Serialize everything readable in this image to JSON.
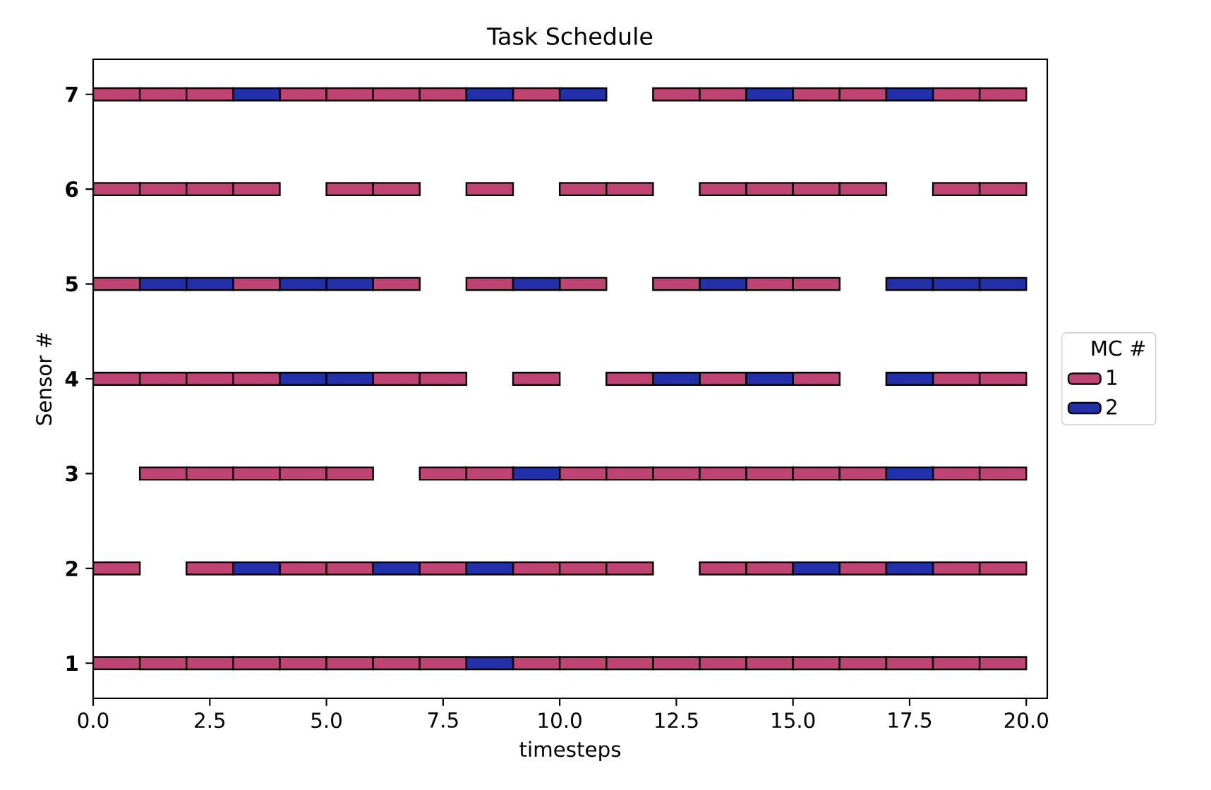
{
  "chart_data": {
    "type": "bar",
    "orientation": "horizontal",
    "title": "Task Schedule",
    "xlabel": "timesteps",
    "ylabel": "Sensor #",
    "legend_title": "MC #",
    "legend": "right",
    "categories": [
      "7",
      "6",
      "5",
      "4",
      "3",
      "2",
      "1"
    ],
    "xlim": [
      0,
      20.45
    ],
    "xticks": [
      {
        "value": 0,
        "label": "0.0"
      },
      {
        "value": 2.5,
        "label": "2.5"
      },
      {
        "value": 5,
        "label": "5.0"
      },
      {
        "value": 7.5,
        "label": "7.5"
      },
      {
        "value": 10,
        "label": "10.0"
      },
      {
        "value": 12.5,
        "label": "12.5"
      },
      {
        "value": 15,
        "label": "15.0"
      },
      {
        "value": 17.5,
        "label": "17.5"
      },
      {
        "value": 20,
        "label": "20.0"
      }
    ],
    "series": [
      {
        "name": "1",
        "color": "#bf4373",
        "base": [
          0,
          0,
          0,
          0,
          null,
          0,
          0
        ],
        "values": [
          1,
          1,
          1,
          1,
          null,
          1,
          1
        ]
      },
      {
        "color": "#bf4373",
        "base": [
          1,
          1,
          null,
          1,
          1,
          null,
          1
        ],
        "values": [
          1,
          1,
          null,
          1,
          1,
          null,
          1
        ]
      },
      {
        "color": "#bf4373",
        "base": [
          2,
          2,
          null,
          2,
          2,
          2,
          2
        ],
        "values": [
          1,
          1,
          null,
          1,
          1,
          1,
          1
        ]
      },
      {
        "color": "#bf4373",
        "base": [
          null,
          3,
          3,
          3,
          3,
          null,
          3
        ],
        "values": [
          null,
          1,
          1,
          1,
          1,
          null,
          1
        ]
      },
      {
        "color": "#bf4373",
        "base": [
          4,
          null,
          null,
          null,
          4,
          4,
          4
        ],
        "values": [
          1,
          null,
          null,
          null,
          1,
          1,
          1
        ]
      },
      {
        "color": "#bf4373",
        "base": [
          5,
          5,
          null,
          null,
          5,
          5,
          5
        ],
        "values": [
          1,
          1,
          null,
          null,
          1,
          1,
          1
        ]
      },
      {
        "color": "#bf4373",
        "base": [
          6,
          6,
          6,
          6,
          null,
          null,
          6
        ],
        "values": [
          1,
          1,
          1,
          1,
          null,
          null,
          1
        ]
      },
      {
        "color": "#bf4373",
        "base": [
          7,
          null,
          null,
          7,
          7,
          7,
          7
        ],
        "values": [
          1,
          null,
          null,
          1,
          1,
          1,
          1
        ]
      },
      {
        "color": "#bf4373",
        "base": [
          null,
          8,
          8,
          null,
          8,
          null,
          null
        ],
        "values": [
          null,
          1,
          1,
          null,
          1,
          null,
          null
        ]
      },
      {
        "color": "#bf4373",
        "base": [
          9,
          null,
          null,
          9,
          null,
          9,
          9
        ],
        "values": [
          1,
          null,
          null,
          1,
          null,
          1,
          1
        ]
      },
      {
        "color": "#bf4373",
        "base": [
          null,
          10,
          10,
          null,
          10,
          10,
          10
        ],
        "values": [
          null,
          1,
          1,
          null,
          1,
          1,
          1
        ]
      },
      {
        "color": "#bf4373",
        "base": [
          null,
          11,
          null,
          11,
          11,
          11,
          11
        ],
        "values": [
          null,
          1,
          null,
          1,
          1,
          1,
          1
        ]
      },
      {
        "color": "#bf4373",
        "base": [
          12,
          null,
          12,
          null,
          12,
          null,
          12
        ],
        "values": [
          1,
          null,
          1,
          null,
          1,
          null,
          1
        ]
      },
      {
        "color": "#bf4373",
        "base": [
          13,
          13,
          null,
          13,
          13,
          13,
          13
        ],
        "values": [
          1,
          1,
          null,
          1,
          1,
          1,
          1
        ]
      },
      {
        "color": "#bf4373",
        "base": [
          null,
          14,
          14,
          null,
          14,
          14,
          14
        ],
        "values": [
          null,
          1,
          1,
          null,
          1,
          1,
          1
        ]
      },
      {
        "color": "#bf4373",
        "base": [
          15,
          15,
          15,
          15,
          15,
          null,
          15
        ],
        "values": [
          1,
          1,
          1,
          1,
          1,
          null,
          1
        ]
      },
      {
        "color": "#bf4373",
        "base": [
          16,
          16,
          null,
          null,
          16,
          16,
          16
        ],
        "values": [
          1,
          1,
          null,
          null,
          1,
          1,
          1
        ]
      },
      {
        "color": "#bf4373",
        "base": [
          null,
          null,
          null,
          null,
          null,
          null,
          17
        ],
        "values": [
          null,
          null,
          null,
          null,
          null,
          null,
          1
        ]
      },
      {
        "color": "#bf4373",
        "base": [
          18,
          18,
          null,
          18,
          18,
          18,
          18
        ],
        "values": [
          1,
          1,
          null,
          1,
          1,
          1,
          1
        ]
      },
      {
        "color": "#bf4373",
        "base": [
          19,
          19,
          null,
          19,
          19,
          19,
          19
        ],
        "values": [
          1,
          1,
          null,
          1,
          1,
          1,
          1
        ]
      },
      {
        "name": "2",
        "color": "#2130a8",
        "base": [
          null,
          null,
          1,
          null,
          null,
          null,
          null
        ],
        "values": [
          null,
          null,
          1,
          null,
          null,
          null,
          null
        ]
      },
      {
        "color": "#2130a8",
        "base": [
          null,
          null,
          2,
          null,
          null,
          null,
          null
        ],
        "values": [
          null,
          null,
          1,
          null,
          null,
          null,
          null
        ]
      },
      {
        "color": "#2130a8",
        "base": [
          3,
          null,
          null,
          null,
          null,
          3,
          null
        ],
        "values": [
          1,
          null,
          null,
          null,
          null,
          1,
          null
        ]
      },
      {
        "color": "#2130a8",
        "base": [
          null,
          null,
          4,
          4,
          null,
          null,
          null
        ],
        "values": [
          null,
          null,
          1,
          1,
          null,
          null,
          null
        ]
      },
      {
        "color": "#2130a8",
        "base": [
          null,
          null,
          5,
          5,
          null,
          null,
          null
        ],
        "values": [
          null,
          null,
          1,
          1,
          null,
          null,
          null
        ]
      },
      {
        "color": "#2130a8",
        "base": [
          null,
          null,
          null,
          null,
          null,
          6,
          null
        ],
        "values": [
          null,
          null,
          null,
          null,
          null,
          1,
          null
        ]
      },
      {
        "color": "#2130a8",
        "base": [
          8,
          null,
          null,
          null,
          null,
          8,
          8
        ],
        "values": [
          1,
          null,
          null,
          null,
          null,
          1,
          1
        ]
      },
      {
        "color": "#2130a8",
        "base": [
          null,
          null,
          9,
          null,
          9,
          null,
          null
        ],
        "values": [
          null,
          null,
          1,
          null,
          1,
          null,
          null
        ]
      },
      {
        "color": "#2130a8",
        "base": [
          10,
          null,
          null,
          null,
          null,
          null,
          null
        ],
        "values": [
          1,
          null,
          null,
          null,
          null,
          null,
          null
        ]
      },
      {
        "color": "#2130a8",
        "base": [
          null,
          null,
          null,
          12,
          null,
          null,
          null
        ],
        "values": [
          null,
          null,
          null,
          1,
          null,
          null,
          null
        ]
      },
      {
        "color": "#2130a8",
        "base": [
          null,
          null,
          13,
          null,
          null,
          null,
          null
        ],
        "values": [
          null,
          null,
          1,
          null,
          null,
          null,
          null
        ]
      },
      {
        "color": "#2130a8",
        "base": [
          14,
          null,
          null,
          14,
          null,
          null,
          null
        ],
        "values": [
          1,
          null,
          null,
          1,
          null,
          null,
          null
        ]
      },
      {
        "color": "#2130a8",
        "base": [
          null,
          null,
          null,
          null,
          null,
          15,
          null
        ],
        "values": [
          null,
          null,
          null,
          null,
          null,
          1,
          null
        ]
      },
      {
        "color": "#2130a8",
        "base": [
          17,
          null,
          17,
          17,
          17,
          17,
          null
        ],
        "values": [
          1,
          null,
          1,
          1,
          1,
          1,
          null
        ]
      },
      {
        "color": "#2130a8",
        "base": [
          null,
          null,
          18,
          null,
          null,
          null,
          null
        ],
        "values": [
          null,
          null,
          1,
          null,
          null,
          null,
          null
        ]
      },
      {
        "color": "#2130a8",
        "base": [
          null,
          null,
          19,
          null,
          null,
          null,
          null
        ],
        "values": [
          null,
          null,
          1,
          null,
          null,
          null,
          null
        ]
      }
    ]
  }
}
